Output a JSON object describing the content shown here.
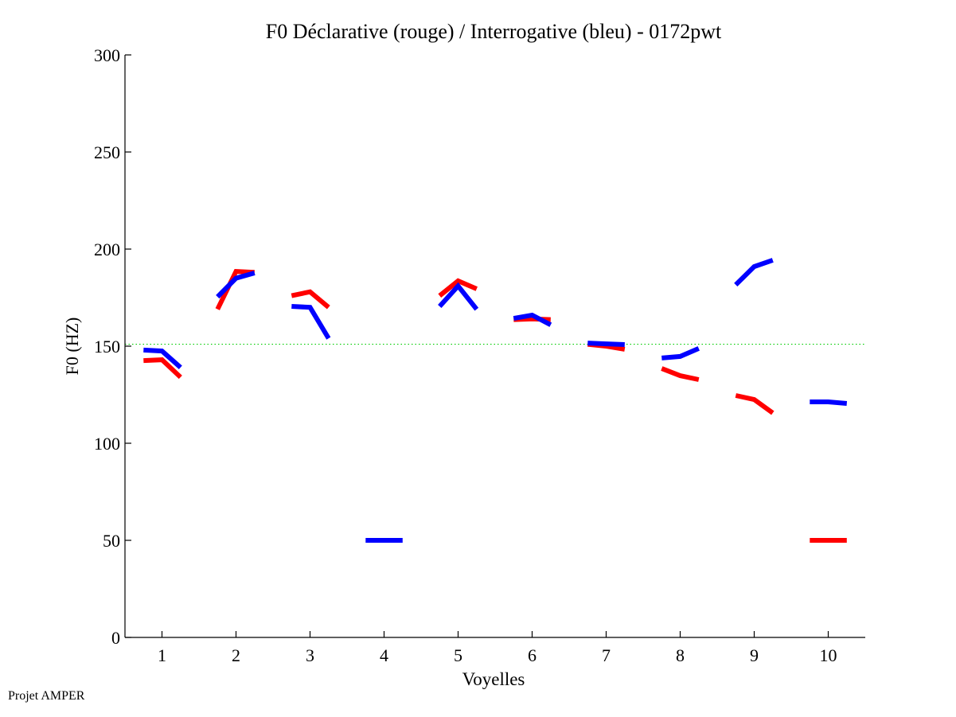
{
  "chart_data": {
    "type": "line",
    "title": "F0 Déclarative (rouge) / Interrogative (bleu) - 0172pwt",
    "xlabel": "Voyelles",
    "ylabel": "F0 (HZ)",
    "xlim": [
      0.5,
      10.5
    ],
    "ylim": [
      0,
      300
    ],
    "xticks": [
      "1",
      "2",
      "3",
      "4",
      "5",
      "6",
      "7",
      "8",
      "9",
      "10"
    ],
    "yticks": [
      "0",
      "50",
      "100",
      "150",
      "200",
      "250",
      "300"
    ],
    "grid": false,
    "reference_line": {
      "value": 151,
      "color": "#00cc00",
      "style": "dotted"
    },
    "series": [
      {
        "name": "Déclarative (rouge)",
        "color": "#ff0000",
        "segments": [
          {
            "vowel": 1,
            "values": [
              142.6,
              143,
              134
            ]
          },
          {
            "vowel": 2,
            "values": [
              169,
              188.5,
              188
            ]
          },
          {
            "vowel": 3,
            "values": [
              176,
              178,
              170
            ]
          },
          {
            "vowel": 5,
            "values": [
              176,
              183.6,
              179.5
            ]
          },
          {
            "vowel": 6,
            "values": [
              163.7,
              164,
              163.7
            ]
          },
          {
            "vowel": 7,
            "values": [
              151,
              150,
              148.4
            ]
          },
          {
            "vowel": 8,
            "values": [
              138.5,
              134.8,
              132.8
            ]
          },
          {
            "vowel": 9,
            "values": [
              124.6,
              122.5,
              115.6
            ]
          },
          {
            "vowel": 10,
            "values": [
              50,
              50,
              50
            ]
          }
        ]
      },
      {
        "name": "Interrogative (bleu)",
        "color": "#0000ff",
        "segments": [
          {
            "vowel": 1,
            "values": [
              148,
              147.5,
              139
            ]
          },
          {
            "vowel": 2,
            "values": [
              175.4,
              185,
              187.7
            ]
          },
          {
            "vowel": 3,
            "values": [
              170.5,
              170,
              154
            ]
          },
          {
            "vowel": 4,
            "values": [
              50,
              50,
              50
            ]
          },
          {
            "vowel": 5,
            "values": [
              170.5,
              181,
              169
            ]
          },
          {
            "vowel": 6,
            "values": [
              164.3,
              166,
              161
            ]
          },
          {
            "vowel": 7,
            "values": [
              151.6,
              151.2,
              150.8
            ]
          },
          {
            "vowel": 8,
            "values": [
              143.9,
              144.7,
              148.8
            ]
          },
          {
            "vowel": 9,
            "values": [
              181.6,
              191,
              194.3
            ]
          },
          {
            "vowel": 10,
            "values": [
              121.3,
              121.3,
              120.5
            ]
          }
        ]
      }
    ]
  },
  "footer": {
    "credit": "Projet AMPER"
  }
}
